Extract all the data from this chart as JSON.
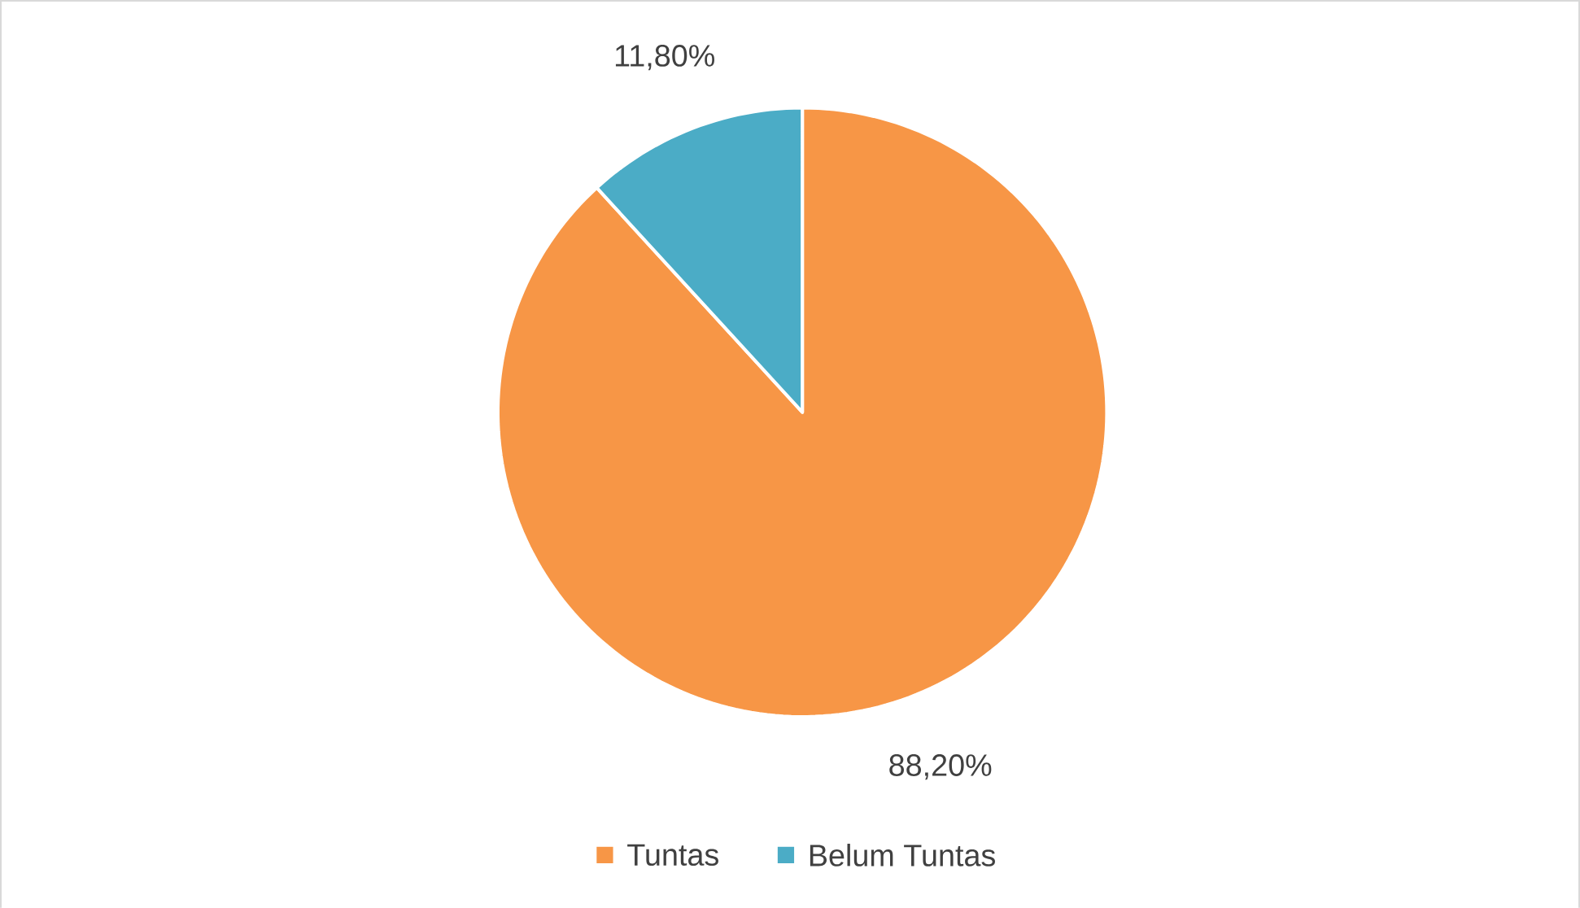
{
  "chart_data": {
    "type": "pie",
    "categories": [
      "Tuntas",
      "Belum Tuntas"
    ],
    "values": [
      88.2,
      11.8
    ],
    "colors": [
      "#f79646",
      "#4bacc6"
    ],
    "value_labels": [
      "88,20%",
      "11,80%"
    ],
    "legend": "bottom"
  }
}
